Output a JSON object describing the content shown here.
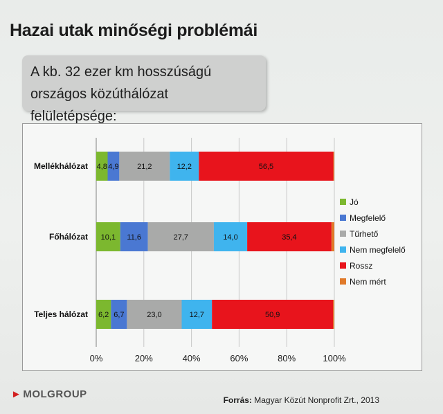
{
  "slide": {
    "title": "Hazai utak minőségi problémái",
    "subtitle": "A  kb. 32 ezer km hosszúságú országos közúthálózat felületépsége:",
    "logo_text": "MOLGROUP",
    "source_label": "Forrás:",
    "source_text": " Magyar Közút Nonprofit Zrt., 2013"
  },
  "chart_data": {
    "type": "bar",
    "orientation": "horizontal",
    "stacked": "percent",
    "categories": [
      "Mellékhálózat",
      "Főhálózat",
      "Teljes hálózat"
    ],
    "series": [
      {
        "name": "Jó",
        "color": "#7cb82f",
        "values": [
          4.8,
          10.1,
          6.2
        ]
      },
      {
        "name": "Megfelelő",
        "color": "#4a78d2",
        "values": [
          4.9,
          11.6,
          6.7
        ]
      },
      {
        "name": "Tűrhető",
        "color": "#a9aaa9",
        "values": [
          21.2,
          27.7,
          23.0
        ]
      },
      {
        "name": "Nem megfelelő",
        "color": "#3fb4ee",
        "values": [
          12.2,
          14.0,
          12.7
        ]
      },
      {
        "name": "Rossz",
        "color": "#e8141c",
        "values": [
          56.5,
          35.4,
          50.9
        ]
      },
      {
        "name": "Nem mért",
        "color": "#e07a2a",
        "values": [
          0.4,
          1.2,
          0.5
        ]
      }
    ],
    "data_labels": [
      [
        "4,8",
        "4,9",
        "21,2",
        "12,2",
        "56,5",
        ""
      ],
      [
        "10,1",
        "11,6",
        "27,7",
        "14,0",
        "35,4",
        ""
      ],
      [
        "6,2",
        "6,7",
        "23,0",
        "12,7",
        "50,9",
        ""
      ]
    ],
    "x_ticks": [
      "0%",
      "20%",
      "40%",
      "60%",
      "80%",
      "100%"
    ],
    "xlim": [
      0,
      100
    ],
    "grid": true,
    "legend_position": "right"
  }
}
